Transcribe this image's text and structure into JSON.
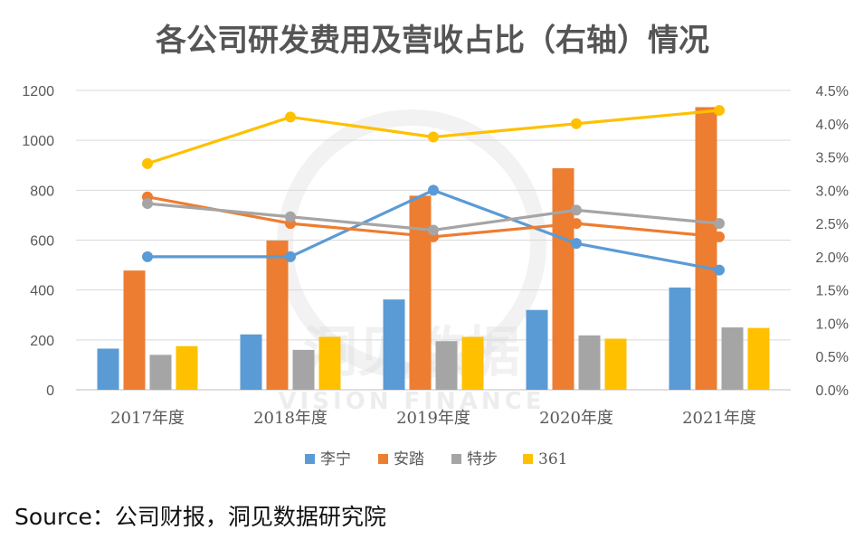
{
  "source_note": "Source：公司财报，洞见数据研究院",
  "watermark": {
    "main": "洞见数据",
    "sub": "VISION FINANCE"
  },
  "chart_data": {
    "type": "bar+line",
    "title": "各公司研发费用及营收占比（右轴）情况",
    "categories": [
      "2017年度",
      "2018年度",
      "2019年度",
      "2020年度",
      "2021年度"
    ],
    "y_left": {
      "min": 0,
      "max": 1200,
      "step": 200,
      "tick_labels": [
        "0",
        "200",
        "400",
        "600",
        "800",
        "1000",
        "1200"
      ]
    },
    "y_right": {
      "min": 0,
      "max": 4.5,
      "step": 0.5,
      "tick_labels": [
        "0.0%",
        "0.5%",
        "1.0%",
        "1.5%",
        "2.0%",
        "2.5%",
        "3.0%",
        "3.5%",
        "4.0%",
        "4.5%"
      ]
    },
    "grid": true,
    "legend": {
      "placement": "bottom",
      "labels": [
        "李宁",
        "安踏",
        "特步",
        "361"
      ]
    },
    "bar_series": [
      {
        "name": "李宁",
        "color": "#5B9BD5",
        "values": [
          165,
          222,
          362,
          320,
          410
        ]
      },
      {
        "name": "安踏",
        "color": "#ED7D31",
        "values": [
          478,
          598,
          778,
          888,
          1133
        ]
      },
      {
        "name": "特步",
        "color": "#A5A5A5",
        "values": [
          140,
          160,
          195,
          218,
          250
        ]
      },
      {
        "name": "361",
        "color": "#FFC000",
        "values": [
          175,
          212,
          212,
          205,
          248
        ]
      }
    ],
    "line_series": [
      {
        "name": "李宁",
        "color": "#5B9BD5",
        "values": [
          2.0,
          2.0,
          3.0,
          2.2,
          1.8
        ]
      },
      {
        "name": "安踏",
        "color": "#ED7D31",
        "values": [
          2.9,
          2.5,
          2.3,
          2.5,
          2.3
        ]
      },
      {
        "name": "特步",
        "color": "#A5A5A5",
        "values": [
          2.8,
          2.6,
          2.4,
          2.7,
          2.5
        ]
      },
      {
        "name": "361",
        "color": "#FFC000",
        "values": [
          3.4,
          4.1,
          3.8,
          4.0,
          4.2
        ]
      }
    ]
  }
}
